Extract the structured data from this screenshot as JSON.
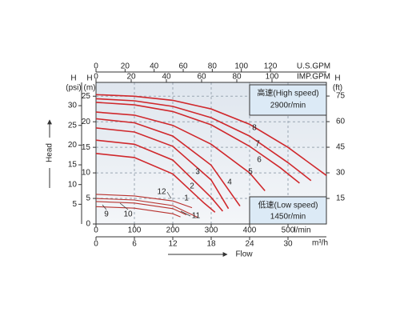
{
  "chart_data": {
    "type": "line",
    "grid": true,
    "x_title": "Flow",
    "y_title": "Head",
    "axes": [
      {
        "side": "bottom",
        "unit": "l/min",
        "lim": [
          0,
          600
        ],
        "ticks": [
          0,
          100,
          200,
          300,
          400,
          500
        ]
      },
      {
        "side": "bottom2",
        "unit": "m³/h",
        "lim": [
          0,
          36
        ],
        "ticks": [
          0,
          6,
          12,
          18,
          24,
          30
        ]
      },
      {
        "side": "top2",
        "unit": "U.S.GPM",
        "lim": [
          0,
          158.5
        ],
        "ticks": [
          0,
          20,
          40,
          60,
          80,
          100,
          120
        ]
      },
      {
        "side": "top",
        "unit": "IMP.GPM",
        "lim": [
          0,
          130.9
        ],
        "ticks": [
          0,
          20,
          40,
          60,
          80,
          100
        ]
      },
      {
        "side": "left",
        "unit": [
          "H",
          "(m)"
        ],
        "lim": [
          0,
          27.7
        ],
        "ticks": [
          0,
          5,
          10,
          15,
          20,
          25
        ]
      },
      {
        "side": "left2",
        "unit": [
          "H",
          "(psi)"
        ],
        "lim": [
          0,
          35.9
        ],
        "ticks": [
          5,
          10,
          15,
          20,
          25,
          30
        ]
      },
      {
        "side": "right",
        "unit": [
          "H",
          "(ft)"
        ],
        "lim": [
          0,
          83
        ],
        "ticks": [
          15,
          30,
          45,
          60,
          75
        ]
      }
    ],
    "speeds": [
      {
        "name": "高速(High speed)",
        "rpm": "2900r/min"
      },
      {
        "name": "低速(Low speed)",
        "rpm": "1450r/min"
      }
    ],
    "series": [
      {
        "name": "1",
        "color": "#d0282c",
        "x": [
          0,
          100,
          200,
          280,
          310
        ],
        "values": [
          13.8,
          13,
          9.8,
          4.2,
          2.3
        ]
      },
      {
        "name": "2",
        "color": "#d0282c",
        "x": [
          0,
          100,
          200,
          300,
          330
        ],
        "values": [
          16.4,
          15.6,
          12.5,
          5.2,
          2.5
        ]
      },
      {
        "name": "3",
        "color": "#d0282c",
        "x": [
          0,
          100,
          200,
          300,
          345
        ],
        "values": [
          18.8,
          18,
          15.2,
          8.6,
          3
        ]
      },
      {
        "name": "4",
        "color": "#d0282c",
        "x": [
          0,
          100,
          200,
          300,
          375
        ],
        "values": [
          20.6,
          19.8,
          17.2,
          11.5,
          3.5
        ]
      },
      {
        "name": "5",
        "color": "#d0282c",
        "x": [
          0,
          100,
          200,
          300,
          400,
          440
        ],
        "values": [
          21.9,
          21.3,
          19.3,
          15.6,
          10,
          6.5
        ]
      },
      {
        "name": "6",
        "color": "#d0282c",
        "x": [
          0,
          100,
          200,
          300,
          400,
          480,
          530
        ],
        "values": [
          23.8,
          23.3,
          22,
          19.4,
          15.2,
          11,
          8
        ]
      },
      {
        "name": "7",
        "color": "#d0282c",
        "x": [
          0,
          100,
          200,
          300,
          400,
          500,
          560
        ],
        "values": [
          24.5,
          24.1,
          23,
          20.8,
          17.2,
          12,
          8.5
        ]
      },
      {
        "name": "8",
        "color": "#d0282c",
        "x": [
          0,
          100,
          200,
          300,
          400,
          500,
          600
        ],
        "values": [
          25.3,
          25,
          24.2,
          22.5,
          19.5,
          15,
          9.5
        ]
      },
      {
        "name": "9",
        "color": "#b8322e",
        "x": [
          0,
          100,
          200,
          220
        ],
        "values": [
          3.4,
          3.1,
          2,
          1.4
        ]
      },
      {
        "name": "10",
        "color": "#b8322e",
        "x": [
          0,
          100,
          200,
          235
        ],
        "values": [
          4.4,
          4.1,
          3,
          1.8
        ]
      },
      {
        "name": "11",
        "color": "#b8322e",
        "x": [
          0,
          100,
          200,
          265
        ],
        "values": [
          5,
          4.7,
          3.6,
          1.3
        ]
      },
      {
        "name": "12",
        "color": "#b8322e",
        "x": [
          0,
          100,
          200,
          250
        ],
        "values": [
          5.8,
          5.5,
          4.5,
          3.2
        ]
      }
    ]
  }
}
